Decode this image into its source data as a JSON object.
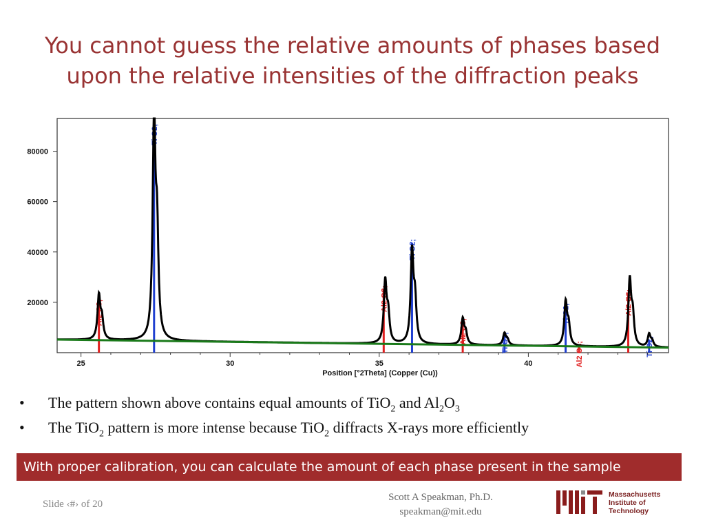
{
  "title": {
    "line1": "You cannot guess the relative amounts of phases based",
    "line2": "upon the relative intensities of the diffraction peaks"
  },
  "chart_data": {
    "type": "line",
    "title": "",
    "xlabel": "Position [°2Theta] (Copper (Cu))",
    "ylabel": "",
    "xlim": [
      24.2,
      44.7
    ],
    "ylim": [
      0,
      93000
    ],
    "x_ticks": [
      25,
      30,
      35,
      40
    ],
    "y_ticks": [
      20000,
      40000,
      60000,
      80000
    ],
    "x_tick_labels": [
      "25",
      "30",
      "35",
      "40"
    ],
    "y_tick_labels": [
      "20000",
      "40000",
      "60000",
      "80000"
    ],
    "grid": false,
    "series": [
      {
        "color": "#000000",
        "background": [
          [
            24.2,
            5200
          ],
          [
            44.7,
            2000
          ]
        ],
        "peaks": [
          {
            "x": 25.6,
            "y": 22000
          },
          {
            "x": 27.45,
            "y": 91000
          },
          {
            "x": 35.2,
            "y": 27500
          },
          {
            "x": 36.1,
            "y": 39000
          },
          {
            "x": 37.8,
            "y": 13000
          },
          {
            "x": 39.2,
            "y": 7500
          },
          {
            "x": 41.25,
            "y": 19500
          },
          {
            "x": 43.4,
            "y": 28000
          },
          {
            "x": 44.05,
            "y": 7000
          }
        ]
      },
      {
        "color": "#1a7a1a",
        "line": [
          [
            24.2,
            5200
          ],
          [
            44.7,
            2000
          ]
        ]
      }
    ],
    "reference_lines": [
      {
        "label": "Al2 O3;",
        "x": 25.6,
        "y": 19500,
        "color": "#e02020"
      },
      {
        "label": "Ti O2;",
        "x": 27.45,
        "y": 93000,
        "color": "#1f3fd0"
      },
      {
        "label": "Al2 O3;",
        "x": 35.15,
        "y": 25000,
        "color": "#e02020"
      },
      {
        "label": "Ti O2;",
        "x": 36.1,
        "y": 43500,
        "color": "#1f3fd0"
      },
      {
        "label": "Al2 O3;",
        "x": 37.8,
        "y": 12000,
        "color": "#e02020"
      },
      {
        "label": "Ti O2;",
        "x": 39.2,
        "y": 6500,
        "color": "#1f3fd0"
      },
      {
        "label": "Ti O2;",
        "x": 41.25,
        "y": 18000,
        "color": "#1f3fd0"
      },
      {
        "label": "Al2 O3;",
        "x": 41.7,
        "y": 3000,
        "color": "#e02020"
      },
      {
        "label": "Al2 O3;",
        "x": 43.35,
        "y": 23500,
        "color": "#e02020"
      },
      {
        "label": "Ti O2;",
        "x": 44.05,
        "y": 5000,
        "color": "#1f3fd0"
      }
    ]
  },
  "bullets": [
    {
      "parts": [
        {
          "t": "The pattern shown above contains equal amounts of TiO"
        },
        {
          "sub": "2"
        },
        {
          "t": " and Al"
        },
        {
          "sub": "2"
        },
        {
          "t": "O"
        },
        {
          "sub": "3"
        }
      ]
    },
    {
      "parts": [
        {
          "t": "The TiO"
        },
        {
          "sub": "2"
        },
        {
          "t": " pattern is more intense because TiO"
        },
        {
          "sub": "2"
        },
        {
          "t": " diffracts X-rays more efficiently"
        }
      ]
    }
  ],
  "bullet_symbol": "•",
  "banner": "With proper calibration, you can calculate the amount of each phase present in the sample",
  "footer": {
    "slide_number": "Slide ‹#› of 20",
    "author": "Scott A Speakman, Ph.D.",
    "email": "speakman@mit.edu",
    "logo_lines": [
      "Massachusetts",
      "Institute of",
      "Technology"
    ]
  },
  "colors": {
    "title": "#993333",
    "banner": "#a02c2c",
    "al2o3_marker": "#e02020",
    "tio2_marker": "#1f3fd0",
    "background_fit": "#1a7a1a"
  }
}
